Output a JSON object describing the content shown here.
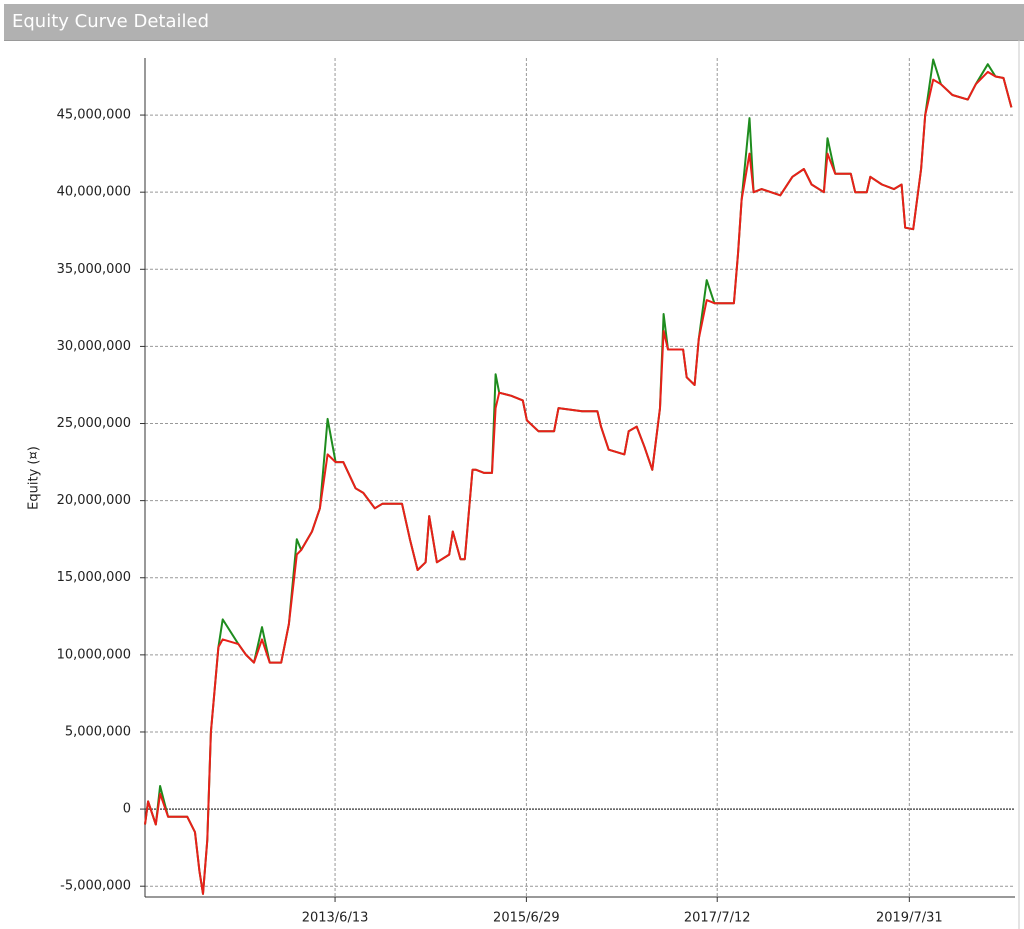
{
  "chart_data": {
    "type": "line",
    "title": "Equity Curve Detailed",
    "y_label": "Equity (¤)",
    "x": [
      "2011/6/3",
      "2011/6/15",
      "2011/7/15",
      "2011/8/1",
      "2011/9/1",
      "2011/11/15",
      "2011/12/15",
      "2012/1/1",
      "2012/1/15",
      "2012/2/1",
      "2012/2/15",
      "2012/3/15",
      "2012/4/1",
      "2012/6/1",
      "2012/7/1",
      "2012/8/1",
      "2012/9/1",
      "2012/10/1",
      "2012/11/15",
      "2012/12/15",
      "2013/1/15",
      "2013/2/1",
      "2013/3/15",
      "2013/4/15",
      "2013/5/15",
      "2013/6/15",
      "2013/7/15",
      "2013/9/1",
      "2013/10/1",
      "2013/11/15",
      "2013/12/15",
      "2014/2/15",
      "2014/3/1",
      "2014/4/1",
      "2014/5/1",
      "2014/6/1",
      "2014/6/15",
      "2014/7/15",
      "2014/9/1",
      "2014/9/15",
      "2014/10/15",
      "2014/11/1",
      "2014/12/1",
      "2014/12/15",
      "2015/1/15",
      "2015/2/15",
      "2015/3/1",
      "2015/3/15",
      "2015/5/1",
      "2015/6/15",
      "2015/7/1",
      "2015/8/15",
      "2015/10/15",
      "2015/11/1",
      "2016/2/1",
      "2016/4/1",
      "2016/4/15",
      "2016/5/15",
      "2016/7/15",
      "2016/8/1",
      "2016/9/1",
      "2016/10/1",
      "2016/11/1",
      "2016/12/1",
      "2016/12/15",
      "2017/1/1",
      "2017/3/1",
      "2017/3/15",
      "2017/4/15",
      "2017/5/1",
      "2017/6/1",
      "2017/7/1",
      "2017/9/15",
      "2017/10/1",
      "2017/10/15",
      "2017/11/15",
      "2017/12/1",
      "2018/1/1",
      "2018/3/15",
      "2018/5/1",
      "2018/6/15",
      "2018/7/15",
      "2018/9/1",
      "2018/9/15",
      "2018/10/15",
      "2018/12/15",
      "2019/1/1",
      "2019/2/15",
      "2019/3/1",
      "2019/4/15",
      "2019/6/1",
      "2019/7/1",
      "2019/7/15",
      "2019/8/15",
      "2019/9/15",
      "2019/10/1",
      "2019/11/1",
      "2019/12/1",
      "2020/1/15",
      "2020/3/15",
      "2020/4/15",
      "2020/6/1",
      "2020/7/1",
      "2020/8/1",
      "2020/9/1"
    ],
    "series": [
      {
        "color": "#1e8c1e",
        "values": [
          -1000000,
          500000,
          -1000000,
          1500000,
          -500000,
          -500000,
          -1500000,
          -4000000,
          -5500000,
          -2000000,
          5000000,
          10500000,
          12300000,
          10700000,
          10000000,
          9500000,
          11800000,
          9500000,
          9500000,
          12000000,
          17500000,
          16800000,
          18000000,
          19500000,
          25300000,
          22500000,
          22500000,
          20800000,
          20500000,
          19500000,
          19800000,
          19800000,
          19800000,
          17500000,
          15500000,
          16000000,
          19000000,
          16000000,
          16500000,
          18000000,
          16200000,
          16200000,
          22000000,
          22000000,
          21800000,
          21800000,
          28200000,
          27000000,
          26800000,
          26500000,
          25200000,
          24500000,
          24500000,
          26000000,
          25800000,
          25800000,
          24800000,
          23300000,
          23000000,
          24500000,
          24800000,
          23500000,
          22000000,
          26000000,
          32100000,
          29800000,
          29800000,
          28000000,
          27500000,
          30500000,
          34300000,
          32800000,
          32800000,
          36000000,
          39500000,
          44800000,
          40000000,
          40200000,
          39800000,
          41000000,
          41500000,
          40500000,
          40000000,
          43500000,
          41200000,
          41200000,
          40000000,
          40000000,
          41000000,
          40500000,
          40200000,
          40500000,
          37700000,
          37600000,
          41500000,
          45000000,
          48600000,
          47000000,
          46300000,
          46000000,
          47000000,
          48300000,
          47500000,
          47400000,
          45500000
        ]
      },
      {
        "color": "#e8201a",
        "values": [
          -1000000,
          500000,
          -1000000,
          1000000,
          -500000,
          -500000,
          -1500000,
          -4000000,
          -5500000,
          -2000000,
          5000000,
          10500000,
          11000000,
          10700000,
          10000000,
          9500000,
          11000000,
          9500000,
          9500000,
          12000000,
          16500000,
          16800000,
          18000000,
          19500000,
          23000000,
          22500000,
          22500000,
          20800000,
          20500000,
          19500000,
          19800000,
          19800000,
          19800000,
          17500000,
          15500000,
          16000000,
          19000000,
          16000000,
          16500000,
          18000000,
          16200000,
          16200000,
          22000000,
          22000000,
          21800000,
          21800000,
          26000000,
          27000000,
          26800000,
          26500000,
          25200000,
          24500000,
          24500000,
          26000000,
          25800000,
          25800000,
          24800000,
          23300000,
          23000000,
          24500000,
          24800000,
          23500000,
          22000000,
          26000000,
          31000000,
          29800000,
          29800000,
          28000000,
          27500000,
          30500000,
          33000000,
          32800000,
          32800000,
          36000000,
          39500000,
          42500000,
          40000000,
          40200000,
          39800000,
          41000000,
          41500000,
          40500000,
          40000000,
          42500000,
          41200000,
          41200000,
          40000000,
          40000000,
          41000000,
          40500000,
          40200000,
          40500000,
          37700000,
          37600000,
          41500000,
          45000000,
          47300000,
          47000000,
          46300000,
          46000000,
          47000000,
          47800000,
          47500000,
          47400000,
          45500000
        ]
      }
    ],
    "xlim": [
      "2011/6/3",
      "2020/9/15"
    ],
    "xticks": [
      "2013/6/13",
      "2015/6/29",
      "2017/7/12",
      "2019/7/31"
    ],
    "ylim": [
      -5700000,
      48700000
    ],
    "yticks": [
      {
        "value": -5000000,
        "label": "-5,000,000"
      },
      0,
      {
        "value": 5000000,
        "label": "5,000,000"
      },
      {
        "value": 10000000,
        "label": "10,000,000"
      },
      {
        "value": 15000000,
        "label": "15,000,000"
      },
      {
        "value": 20000000,
        "label": "20,000,000"
      },
      {
        "value": 25000000,
        "label": "25,000,000"
      },
      {
        "value": 30000000,
        "label": "30,000,000"
      },
      {
        "value": 35000000,
        "label": "35,000,000"
      },
      {
        "value": 40000000,
        "label": "40,000,000"
      },
      {
        "value": 45000000,
        "label": "45,000,000"
      }
    ],
    "grid": true
  }
}
